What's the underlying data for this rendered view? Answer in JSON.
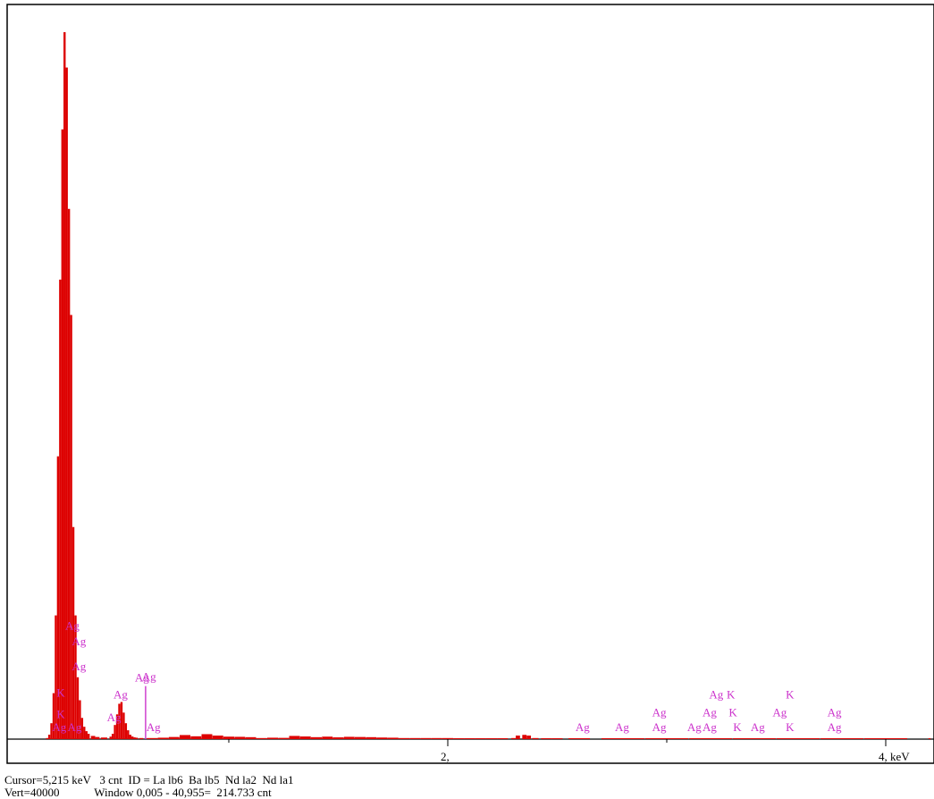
{
  "chart_data": {
    "type": "area",
    "title": "",
    "xlabel": "keV",
    "ylabel": "",
    "xlim": [
      0.0,
      4.2
    ],
    "ylim": [
      0,
      40000
    ],
    "grid": false,
    "x_tick_labels": [
      {
        "value": 2.0,
        "label": "2,"
      },
      {
        "value": 4.0,
        "label": "4, keV"
      }
    ],
    "x_minor_ticks": [
      1.0,
      3.0
    ],
    "series": [
      {
        "color": "#dd0000",
        "x": [
          0.17,
          0.18,
          0.19,
          0.2,
          0.21,
          0.22,
          0.23,
          0.24,
          0.25,
          0.26,
          0.27,
          0.28,
          0.29,
          0.3,
          0.31,
          0.32,
          0.33,
          0.34,
          0.35,
          0.36,
          0.38,
          0.4,
          0.43,
          0.46,
          0.47,
          0.48,
          0.49,
          0.5,
          0.51,
          0.52,
          0.53,
          0.54,
          0.55,
          0.56,
          0.57,
          0.58,
          0.6,
          0.65,
          0.7,
          0.75,
          0.8,
          0.85,
          0.9,
          0.95,
          1.0,
          1.05,
          1.1,
          1.15,
          1.2,
          1.25,
          1.3,
          1.35,
          1.4,
          1.45,
          1.5,
          1.55,
          1.6,
          1.65,
          1.7,
          1.75,
          1.8,
          1.85,
          1.9,
          1.95,
          2.0,
          2.05,
          2.1,
          2.15,
          2.2,
          2.25,
          2.3,
          2.32,
          2.35,
          2.37,
          2.4,
          2.45,
          2.5,
          2.6,
          2.8,
          3.0,
          3.2,
          3.4,
          3.6,
          3.8,
          4.0,
          4.2
        ],
        "y": [
          60,
          250,
          900,
          2600,
          7000,
          16000,
          26000,
          34500,
          40000,
          38000,
          30000,
          24000,
          12000,
          7000,
          3500,
          2200,
          1200,
          700,
          450,
          300,
          180,
          120,
          90,
          140,
          300,
          800,
          1400,
          2000,
          2100,
          1500,
          900,
          500,
          250,
          150,
          100,
          80,
          60,
          60,
          80,
          120,
          230,
          160,
          280,
          200,
          140,
          130,
          110,
          60,
          80,
          70,
          180,
          150,
          110,
          140,
          100,
          130,
          120,
          110,
          90,
          80,
          60,
          60,
          60,
          60,
          60,
          30,
          30,
          30,
          30,
          40,
          60,
          200,
          240,
          200,
          60,
          30,
          20,
          15,
          10,
          8,
          6,
          5,
          5,
          4,
          3,
          3
        ]
      }
    ],
    "peak_markers": [
      {
        "x": 0.62,
        "y": 3000,
        "label": "Ag"
      }
    ],
    "peak_labels": [
      {
        "x": 0.23,
        "y": 450,
        "text": "Ag"
      },
      {
        "x": 0.25,
        "y": 1200,
        "text": "K"
      },
      {
        "x": 0.25,
        "y": 2400,
        "text": "K"
      },
      {
        "x": 0.3,
        "y": 450,
        "text": "Ag"
      },
      {
        "x": 0.32,
        "y": 3900,
        "text": "Ag"
      },
      {
        "x": 0.32,
        "y": 5300,
        "text": "Ag"
      },
      {
        "x": 0.29,
        "y": 6200,
        "text": "Ag"
      },
      {
        "x": 0.48,
        "y": 1000,
        "text": "Ag"
      },
      {
        "x": 0.51,
        "y": 2300,
        "text": "Ag"
      },
      {
        "x": 0.64,
        "y": 3300,
        "text": "Ag"
      },
      {
        "x": 0.66,
        "y": 450,
        "text": "Ag"
      },
      {
        "x": 2.62,
        "y": 450,
        "text": "Ag"
      },
      {
        "x": 2.8,
        "y": 450,
        "text": "Ag"
      },
      {
        "x": 2.97,
        "y": 450,
        "text": "Ag"
      },
      {
        "x": 2.97,
        "y": 1300,
        "text": "Ag"
      },
      {
        "x": 3.13,
        "y": 450,
        "text": "Ag"
      },
      {
        "x": 3.2,
        "y": 450,
        "text": "Ag"
      },
      {
        "x": 3.2,
        "y": 1300,
        "text": "Ag"
      },
      {
        "x": 3.23,
        "y": 2300,
        "text": "Ag"
      },
      {
        "x": 3.31,
        "y": 2300,
        "text": "K"
      },
      {
        "x": 3.32,
        "y": 1300,
        "text": "K"
      },
      {
        "x": 3.34,
        "y": 450,
        "text": "K"
      },
      {
        "x": 3.42,
        "y": 450,
        "text": "Ag"
      },
      {
        "x": 3.52,
        "y": 1300,
        "text": "Ag"
      },
      {
        "x": 3.58,
        "y": 2300,
        "text": "K"
      },
      {
        "x": 3.58,
        "y": 450,
        "text": "K"
      },
      {
        "x": 3.77,
        "y": 1300,
        "text": "Ag"
      },
      {
        "x": 3.77,
        "y": 450,
        "text": "Ag"
      }
    ]
  },
  "status": {
    "line1": "Cursor=5,215 keV   3 cnt  ID = La lb6  Ba lb5  Nd la2  Nd la1",
    "line2": "Vert=40000            Window 0,005 - 40,955=  214.733 cnt"
  },
  "colors": {
    "spectrum_fill": "#dd0000",
    "peak_label": "#cc33cc",
    "frame": "#000000"
  }
}
